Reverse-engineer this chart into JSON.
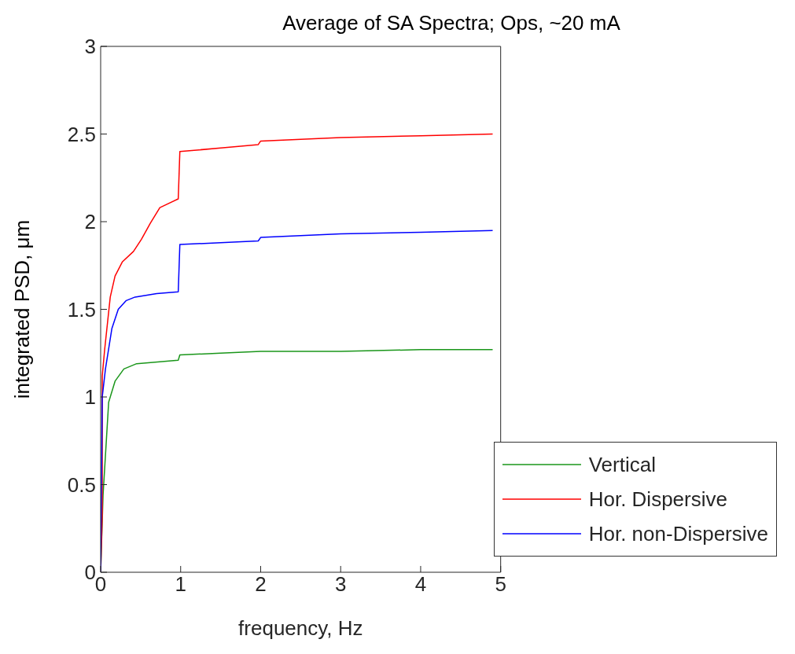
{
  "chart_data": {
    "type": "line",
    "title": "Average of SA Spectra; Ops, ~20 mA",
    "xlabel": "frequency, Hz",
    "ylabel": "integrated PSD, μm",
    "xlim": [
      0,
      5
    ],
    "xticks": [
      0,
      1,
      2,
      3,
      4,
      5
    ],
    "ylim": [
      0,
      3
    ],
    "yticks": [
      0,
      0.5,
      1,
      1.5,
      2,
      2.5,
      3
    ],
    "grid": false,
    "legend": "bottom right",
    "marker": "none",
    "line_style": "solid",
    "series": [
      {
        "name": "Vertical",
        "color": "#1a961a",
        "x": [
          0,
          0.03,
          0.1,
          0.18,
          0.29,
          0.45,
          0.97,
          0.99,
          1.5,
          2,
          3,
          4,
          4.9
        ],
        "values": [
          0,
          0.44,
          0.97,
          1.09,
          1.16,
          1.19,
          1.21,
          1.24,
          1.25,
          1.26,
          1.26,
          1.27,
          1.27
        ]
      },
      {
        "name": "Hor. Dispersive",
        "color": "#ff0000",
        "x": [
          0,
          0.02,
          0.02,
          0.05,
          0.12,
          0.18,
          0.27,
          0.41,
          0.51,
          0.62,
          0.74,
          0.97,
          0.99,
          1.5,
          1.97,
          2,
          3,
          4,
          4.9
        ],
        "values": [
          0,
          0.33,
          1.12,
          1.27,
          1.57,
          1.69,
          1.77,
          1.83,
          1.9,
          1.99,
          2.08,
          2.13,
          2.4,
          2.42,
          2.44,
          2.46,
          2.48,
          2.49,
          2.5
        ]
      },
      {
        "name": "Hor. non-Dispersive",
        "color": "#0000ff",
        "x": [
          0,
          0.02,
          0.06,
          0.14,
          0.22,
          0.32,
          0.43,
          0.7,
          0.97,
          0.99,
          1.5,
          1.97,
          2,
          3,
          4,
          4.9
        ],
        "values": [
          0,
          1.0,
          1.16,
          1.39,
          1.5,
          1.55,
          1.57,
          1.59,
          1.6,
          1.87,
          1.88,
          1.89,
          1.91,
          1.93,
          1.94,
          1.95
        ]
      }
    ]
  }
}
